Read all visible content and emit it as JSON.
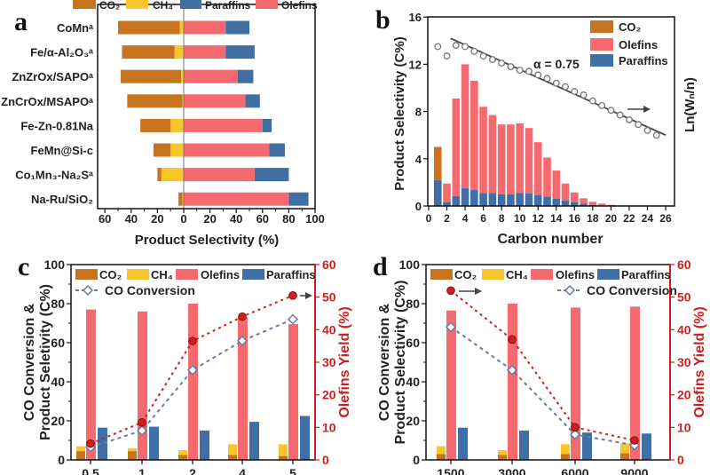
{
  "colors": {
    "CO2": "#c8741f",
    "CH4": "#f8c52a",
    "Olefins": "#f46a6e",
    "Paraffins": "#3f6fa5",
    "yield": "#cc1f1f",
    "conversion": "#6b7aa6",
    "ln_points": "#777777"
  },
  "chart_data": [
    {
      "panel": "a",
      "type": "bar",
      "orientation": "horizontal-diverging",
      "xlabel": "Product Selectivity (%)",
      "xlim": [
        -60,
        100
      ],
      "xtick_labels": [
        "60",
        "40",
        "20",
        "0",
        "20",
        "40",
        "60",
        "80",
        "100"
      ],
      "legend": [
        "CO₂",
        "CH₄",
        "Paraffins",
        "Olefins"
      ],
      "categories": [
        "CoMnᵃ",
        "Fe/α-Al₂O₃ᵃ",
        "ZnZrOx/SAPOᵃ",
        "ZnCrOx/MSAPOᵃ",
        "Fe-Zn-0.81Na",
        "FeMn@Si-c",
        "Co₁Mn₃-Na₂Sᵃ",
        "Na-Ru/SiO₂"
      ],
      "series": [
        {
          "name": "CH₄",
          "side": "left",
          "values": [
            3,
            7,
            2,
            1,
            10,
            10,
            17,
            1
          ]
        },
        {
          "name": "CO₂",
          "side": "left",
          "values": [
            47,
            40,
            46,
            42,
            23,
            13,
            3,
            3
          ]
        },
        {
          "name": "Olefins",
          "side": "right",
          "values": [
            32,
            32,
            41,
            47,
            60,
            65,
            54,
            80
          ]
        },
        {
          "name": "Paraffins",
          "side": "right",
          "values": [
            18,
            22,
            12,
            11,
            7,
            12,
            26,
            15
          ]
        }
      ]
    },
    {
      "panel": "b",
      "type": "bar",
      "stacked": true,
      "xlabel": "Carbon number",
      "ylabel": "Product Selectivity (C%)",
      "ylabel_right": "Ln(Wₙ/n)",
      "xlim": [
        0,
        27
      ],
      "ylim": [
        0,
        16
      ],
      "xticks": [
        "0",
        "2",
        "4",
        "6",
        "8",
        "10",
        "12",
        "14",
        "16",
        "18",
        "20",
        "22",
        "24",
        "26"
      ],
      "yticks": [
        "0",
        "4",
        "8",
        "12",
        "16"
      ],
      "legend": [
        "CO₂",
        "Olefins",
        "Paraffins"
      ],
      "annotation": "α = 0.75",
      "x": [
        1,
        2,
        3,
        4,
        5,
        6,
        7,
        8,
        9,
        10,
        11,
        12,
        13,
        14,
        15,
        16,
        17,
        18,
        19,
        20,
        21,
        22
      ],
      "series": [
        {
          "name": "Paraffins",
          "values": [
            2.2,
            0.3,
            0.85,
            1.5,
            1.35,
            1.1,
            1.1,
            1.0,
            1.0,
            1.1,
            1.05,
            0.9,
            0.8,
            0.6,
            0.45,
            0.3,
            0.2,
            0.1,
            0.05,
            0.03,
            0.02,
            0.01
          ]
        },
        {
          "name": "Olefins",
          "values": [
            0,
            1.6,
            8.25,
            10.5,
            9.25,
            7.3,
            6.6,
            5.9,
            5.9,
            5.9,
            5.55,
            4.5,
            3.3,
            2.4,
            1.45,
            0.85,
            0.45,
            0.25,
            0.15,
            0.07,
            0.03,
            0.02
          ]
        },
        {
          "name": "CO₂",
          "values": [
            2.8,
            0,
            0,
            0,
            0,
            0,
            0,
            0,
            0,
            0,
            0,
            0,
            0,
            0,
            0,
            0,
            0,
            0,
            0,
            0,
            0,
            0
          ]
        }
      ],
      "ln_wn_n_points": {
        "x": [
          1,
          2,
          3,
          4,
          5,
          6,
          7,
          8,
          9,
          10,
          11,
          12,
          13,
          14,
          15,
          16,
          17,
          18,
          19,
          20,
          21,
          22,
          23,
          24,
          25
        ],
        "y_on_left_scale": [
          13.5,
          12.7,
          13.6,
          13.5,
          13.1,
          12.7,
          12.4,
          12.1,
          11.8,
          11.5,
          11.4,
          11.1,
          10.8,
          10.4,
          10.1,
          9.7,
          9.4,
          8.9,
          8.5,
          8.1,
          7.7,
          7.3,
          6.9,
          6.4,
          6.0
        ]
      },
      "fit_line": {
        "x": [
          2.4,
          26
        ],
        "y_on_left_scale": [
          14.2,
          6.0
        ]
      }
    },
    {
      "panel": "c",
      "type": "bar+line",
      "ylabel": [
        "CO Conversion &",
        "Product Seletivity (C%)"
      ],
      "ylabel_right": "Olefins Yield (%)",
      "ylim": [
        0,
        100
      ],
      "ylim_right": [
        0,
        60
      ],
      "yticks": [
        "0",
        "20",
        "40",
        "60",
        "80",
        "100"
      ],
      "yticks_right": [
        "0",
        "10",
        "20",
        "30",
        "40",
        "50",
        "60"
      ],
      "categories": [
        "0.5",
        "1",
        "2",
        "4",
        "5"
      ],
      "legend": [
        "CO₂",
        "CH₄",
        "Olefins",
        "Paraffins",
        "CO Conversion"
      ],
      "series": [
        {
          "name": "CO₂",
          "values": [
            4.5,
            4.5,
            2.5,
            2.5,
            2
          ]
        },
        {
          "name": "CH₄",
          "values": [
            2.5,
            1.5,
            2.5,
            5.5,
            6
          ]
        },
        {
          "name": "Olefins",
          "values": [
            77,
            76,
            80,
            73,
            69.5
          ]
        },
        {
          "name": "Paraffins",
          "values": [
            16.5,
            17,
            15,
            19.5,
            22.5
          ]
        },
        {
          "name": "CO Conversion",
          "axis": "left",
          "values": [
            6.5,
            15,
            46,
            61,
            72
          ]
        },
        {
          "axis": "right",
          "label": "Olefins Yield",
          "values": [
            5,
            11.5,
            36.5,
            44,
            50.5
          ]
        }
      ]
    },
    {
      "panel": "d",
      "type": "bar+line",
      "ylabel": [
        "CO Conversion &",
        "Product Selectivity (C%)"
      ],
      "ylabel_right": "Olefins Yield (%)",
      "ylim": [
        0,
        100
      ],
      "ylim_right": [
        0,
        60
      ],
      "yticks": [
        "0",
        "20",
        "40",
        "60",
        "80",
        "100"
      ],
      "yticks_right": [
        "0",
        "10",
        "20",
        "30",
        "40",
        "50",
        "60"
      ],
      "categories": [
        "1500",
        "3000",
        "6000",
        "9000"
      ],
      "legend": [
        "CO₂",
        "CH₄",
        "Olefins",
        "Paraffins",
        "CO Conversion"
      ],
      "series": [
        {
          "name": "CO₂",
          "values": [
            3,
            2.5,
            3,
            3.5
          ]
        },
        {
          "name": "CH₄",
          "values": [
            4,
            2.5,
            5,
            5
          ]
        },
        {
          "name": "Olefins",
          "values": [
            76.5,
            80,
            78,
            78.5
          ]
        },
        {
          "name": "Paraffins",
          "values": [
            16.5,
            15,
            14,
            13.5
          ]
        },
        {
          "name": "CO Conversion",
          "axis": "left",
          "values": [
            68,
            46,
            13,
            7.5
          ]
        },
        {
          "axis": "right",
          "label": "Olefins Yield",
          "values": [
            52,
            37,
            10,
            6
          ]
        }
      ]
    }
  ]
}
